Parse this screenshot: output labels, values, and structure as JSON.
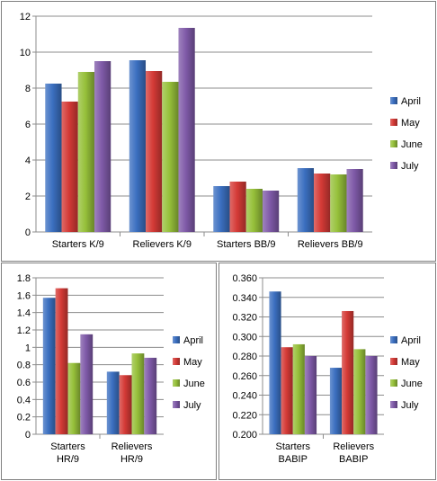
{
  "chart_data": [
    {
      "type": "bar",
      "categories": [
        "Starters K/9",
        "Relievers K/9",
        "Starters BB/9",
        "Relievers BB/9"
      ],
      "series": [
        {
          "name": "April",
          "color": "#3b6fc0",
          "values": [
            8.25,
            9.55,
            2.55,
            3.55
          ]
        },
        {
          "name": "May",
          "color": "#d43a36",
          "values": [
            7.25,
            8.95,
            2.8,
            3.25
          ]
        },
        {
          "name": "June",
          "color": "#96c03a",
          "values": [
            8.9,
            8.35,
            2.4,
            3.2
          ]
        },
        {
          "name": "July",
          "color": "#7f5aa8",
          "values": [
            9.5,
            11.35,
            2.3,
            3.5
          ]
        }
      ],
      "ylim": [
        0,
        12
      ],
      "ytick_labels": [
        "0",
        "2",
        "4",
        "6",
        "8",
        "10",
        "12"
      ],
      "grid": true,
      "legend": "right"
    },
    {
      "type": "bar",
      "categories": [
        [
          "Starters",
          "HR/9"
        ],
        [
          "Relievers",
          "HR/9"
        ]
      ],
      "series": [
        {
          "name": "April",
          "color": "#3b6fc0",
          "values": [
            1.57,
            0.72
          ]
        },
        {
          "name": "May",
          "color": "#d43a36",
          "values": [
            1.68,
            0.68
          ]
        },
        {
          "name": "June",
          "color": "#96c03a",
          "values": [
            0.82,
            0.93
          ]
        },
        {
          "name": "July",
          "color": "#7f5aa8",
          "values": [
            1.15,
            0.88
          ]
        }
      ],
      "ylim": [
        0,
        1.8
      ],
      "ytick_labels": [
        "0",
        "0.2",
        "0.4",
        "0.6",
        "0.8",
        "1",
        "1.2",
        "1.4",
        "1.6",
        "1.8"
      ],
      "grid": true,
      "legend": "right"
    },
    {
      "type": "bar",
      "categories": [
        [
          "Starters",
          "BABIP"
        ],
        [
          "Relievers",
          "BABIP"
        ]
      ],
      "series": [
        {
          "name": "April",
          "color": "#3b6fc0",
          "values": [
            0.346,
            0.268
          ]
        },
        {
          "name": "May",
          "color": "#d43a36",
          "values": [
            0.289,
            0.326
          ]
        },
        {
          "name": "June",
          "color": "#96c03a",
          "values": [
            0.292,
            0.287
          ]
        },
        {
          "name": "July",
          "color": "#7f5aa8",
          "values": [
            0.28,
            0.28
          ]
        }
      ],
      "ylim": [
        0.2,
        0.36
      ],
      "ytick_labels": [
        "0.200",
        "0.220",
        "0.240",
        "0.260",
        "0.280",
        "0.300",
        "0.320",
        "0.340",
        "0.360"
      ],
      "grid": true,
      "legend": "right"
    }
  ]
}
